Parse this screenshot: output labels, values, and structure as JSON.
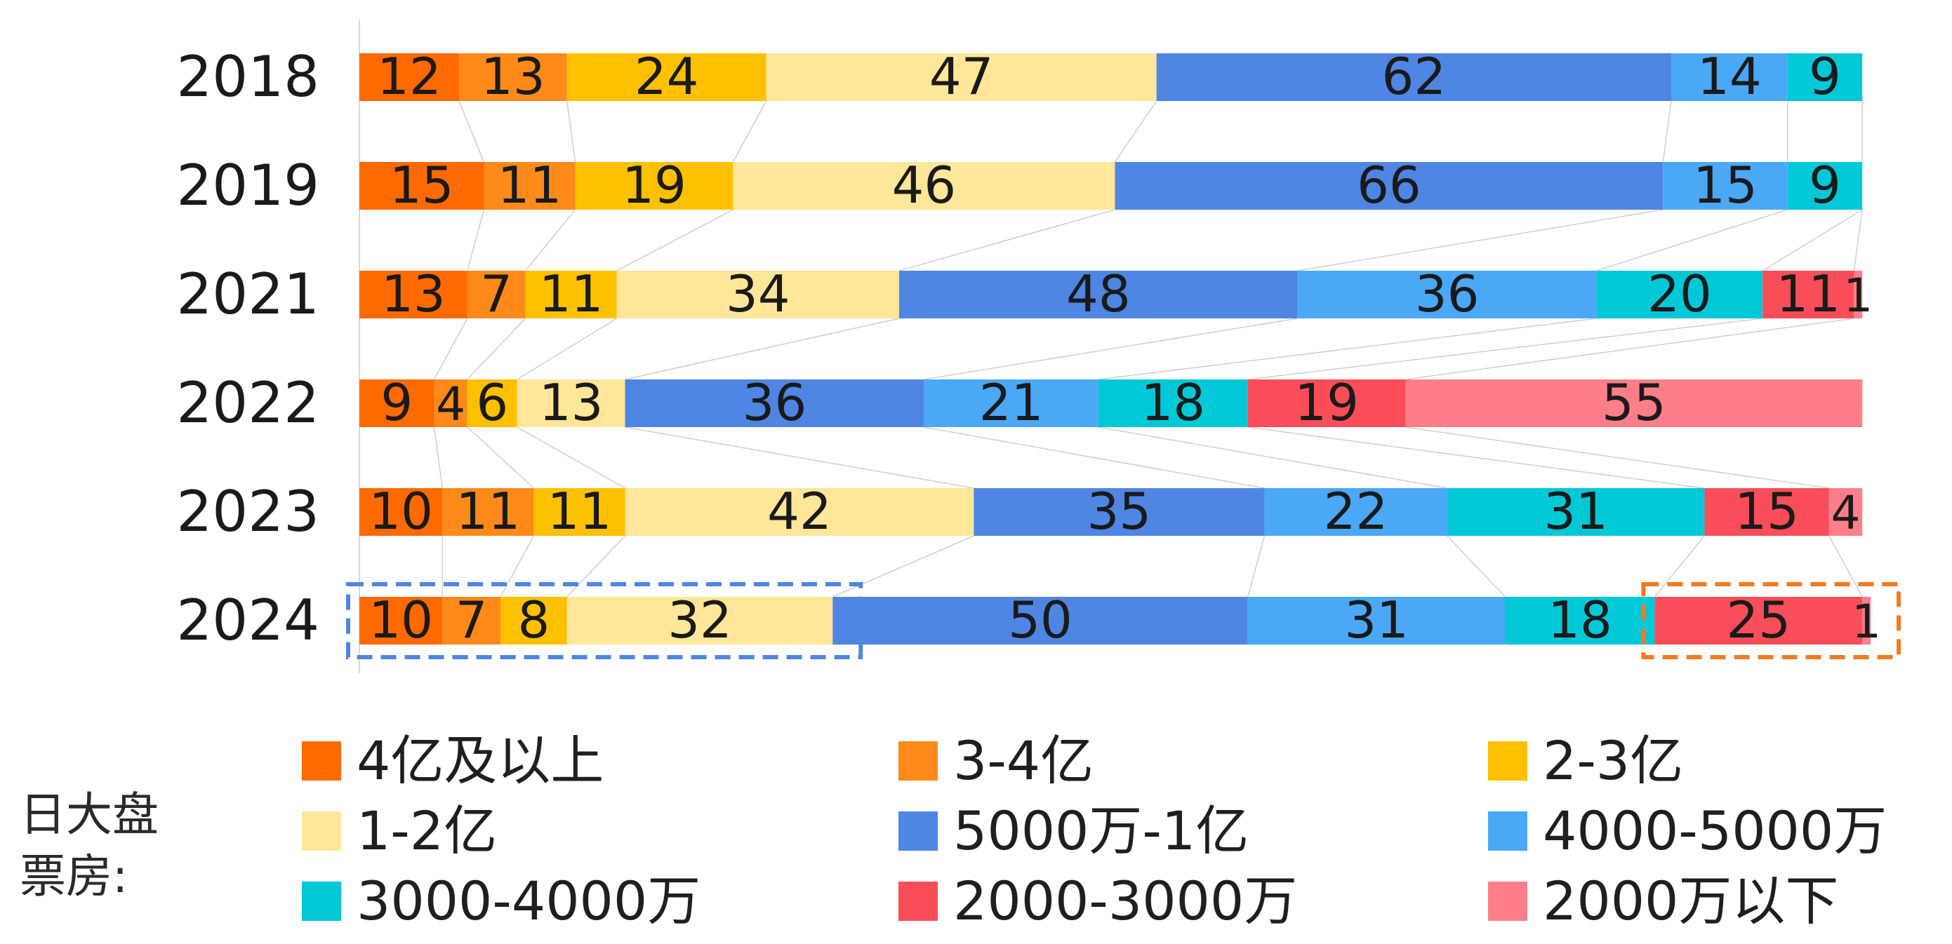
{
  "chart_data": {
    "type": "bar",
    "orientation": "horizontal",
    "stacked": true,
    "categories": [
      "2018",
      "2019",
      "2021",
      "2022",
      "2023",
      "2024"
    ],
    "series": [
      {
        "name": "4亿及以上",
        "color": "#ff6a00",
        "values": [
          12,
          15,
          13,
          9,
          10,
          10
        ]
      },
      {
        "name": "3-4亿",
        "color": "#ff8a1a",
        "values": [
          13,
          11,
          7,
          4,
          11,
          7
        ]
      },
      {
        "name": "2-3亿",
        "color": "#ffc000",
        "values": [
          24,
          19,
          11,
          6,
          11,
          8
        ]
      },
      {
        "name": "1-2亿",
        "color": "#ffe699",
        "values": [
          47,
          46,
          34,
          13,
          42,
          32
        ]
      },
      {
        "name": "5000万-1亿",
        "color": "#4f86e3",
        "values": [
          62,
          66,
          48,
          36,
          35,
          50
        ]
      },
      {
        "name": "4000-5000万",
        "color": "#4aa8f7",
        "values": [
          14,
          15,
          36,
          21,
          22,
          31
        ]
      },
      {
        "name": "3000-4000万",
        "color": "#00c8d6",
        "values": [
          9,
          9,
          20,
          18,
          31,
          18
        ]
      },
      {
        "name": "2000-3000万",
        "color": "#f94d5a",
        "values": [
          0,
          0,
          11,
          19,
          15,
          25
        ]
      },
      {
        "name": "2000万以下",
        "color": "#ff7e8a",
        "values": [
          0,
          0,
          1,
          55,
          4,
          1
        ]
      }
    ],
    "xlim": [
      0,
      182
    ],
    "legend_position": "bottom",
    "highlights": [
      {
        "category": "2024",
        "series": [
          "4亿及以上",
          "3-4亿",
          "2-3亿",
          "1-2亿"
        ],
        "color": "#4f86e3",
        "style": "dashed"
      },
      {
        "category": "2024",
        "series": [
          "2000-3000万",
          "2000万以下"
        ],
        "color": "#f47a20",
        "style": "dashed"
      }
    ]
  },
  "legend": {
    "title": "日大盘票房:",
    "items": [
      "4亿及以上",
      "3-4亿",
      "2-3亿",
      "1-2亿",
      "5000万-1亿",
      "4000-5000万",
      "3000-4000万",
      "2000-3000万",
      "2000万以下"
    ]
  }
}
